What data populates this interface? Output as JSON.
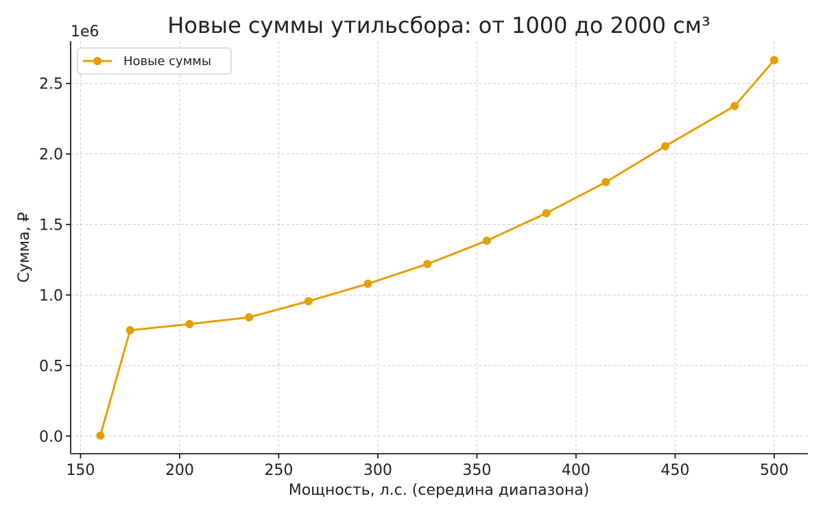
{
  "chart_data": {
    "type": "line",
    "title": "Новые суммы утильсбора: от 1000 до 2000 см³",
    "xlabel": "Мощность, л.с. (середина диапазона)",
    "ylabel": "Сумма, ₽",
    "y_offset_label": "1e6",
    "xlim": [
      145,
      517
    ],
    "ylim": [
      -125000,
      2800000
    ],
    "x_ticks": [
      150,
      200,
      250,
      300,
      350,
      400,
      450,
      500
    ],
    "x_tick_labels": [
      "150",
      "200",
      "250",
      "300",
      "350",
      "400",
      "450",
      "500"
    ],
    "y_ticks": [
      0,
      500000,
      1000000,
      1500000,
      2000000,
      2500000
    ],
    "y_tick_labels": [
      "0.0",
      "0.5",
      "1.0",
      "1.5",
      "2.0",
      "2.5"
    ],
    "grid": true,
    "legend_position": "top-left",
    "series": [
      {
        "name": "Новые суммы",
        "color": "#E69F00",
        "marker": "circle",
        "x": [
          160,
          175,
          205,
          235,
          265,
          295,
          325,
          355,
          385,
          415,
          445,
          480,
          500
        ],
        "y": [
          3400,
          750000,
          794000,
          842000,
          956000,
          1080000,
          1220000,
          1385000,
          1580000,
          1800000,
          2055000,
          2340000,
          2665000
        ]
      }
    ]
  }
}
